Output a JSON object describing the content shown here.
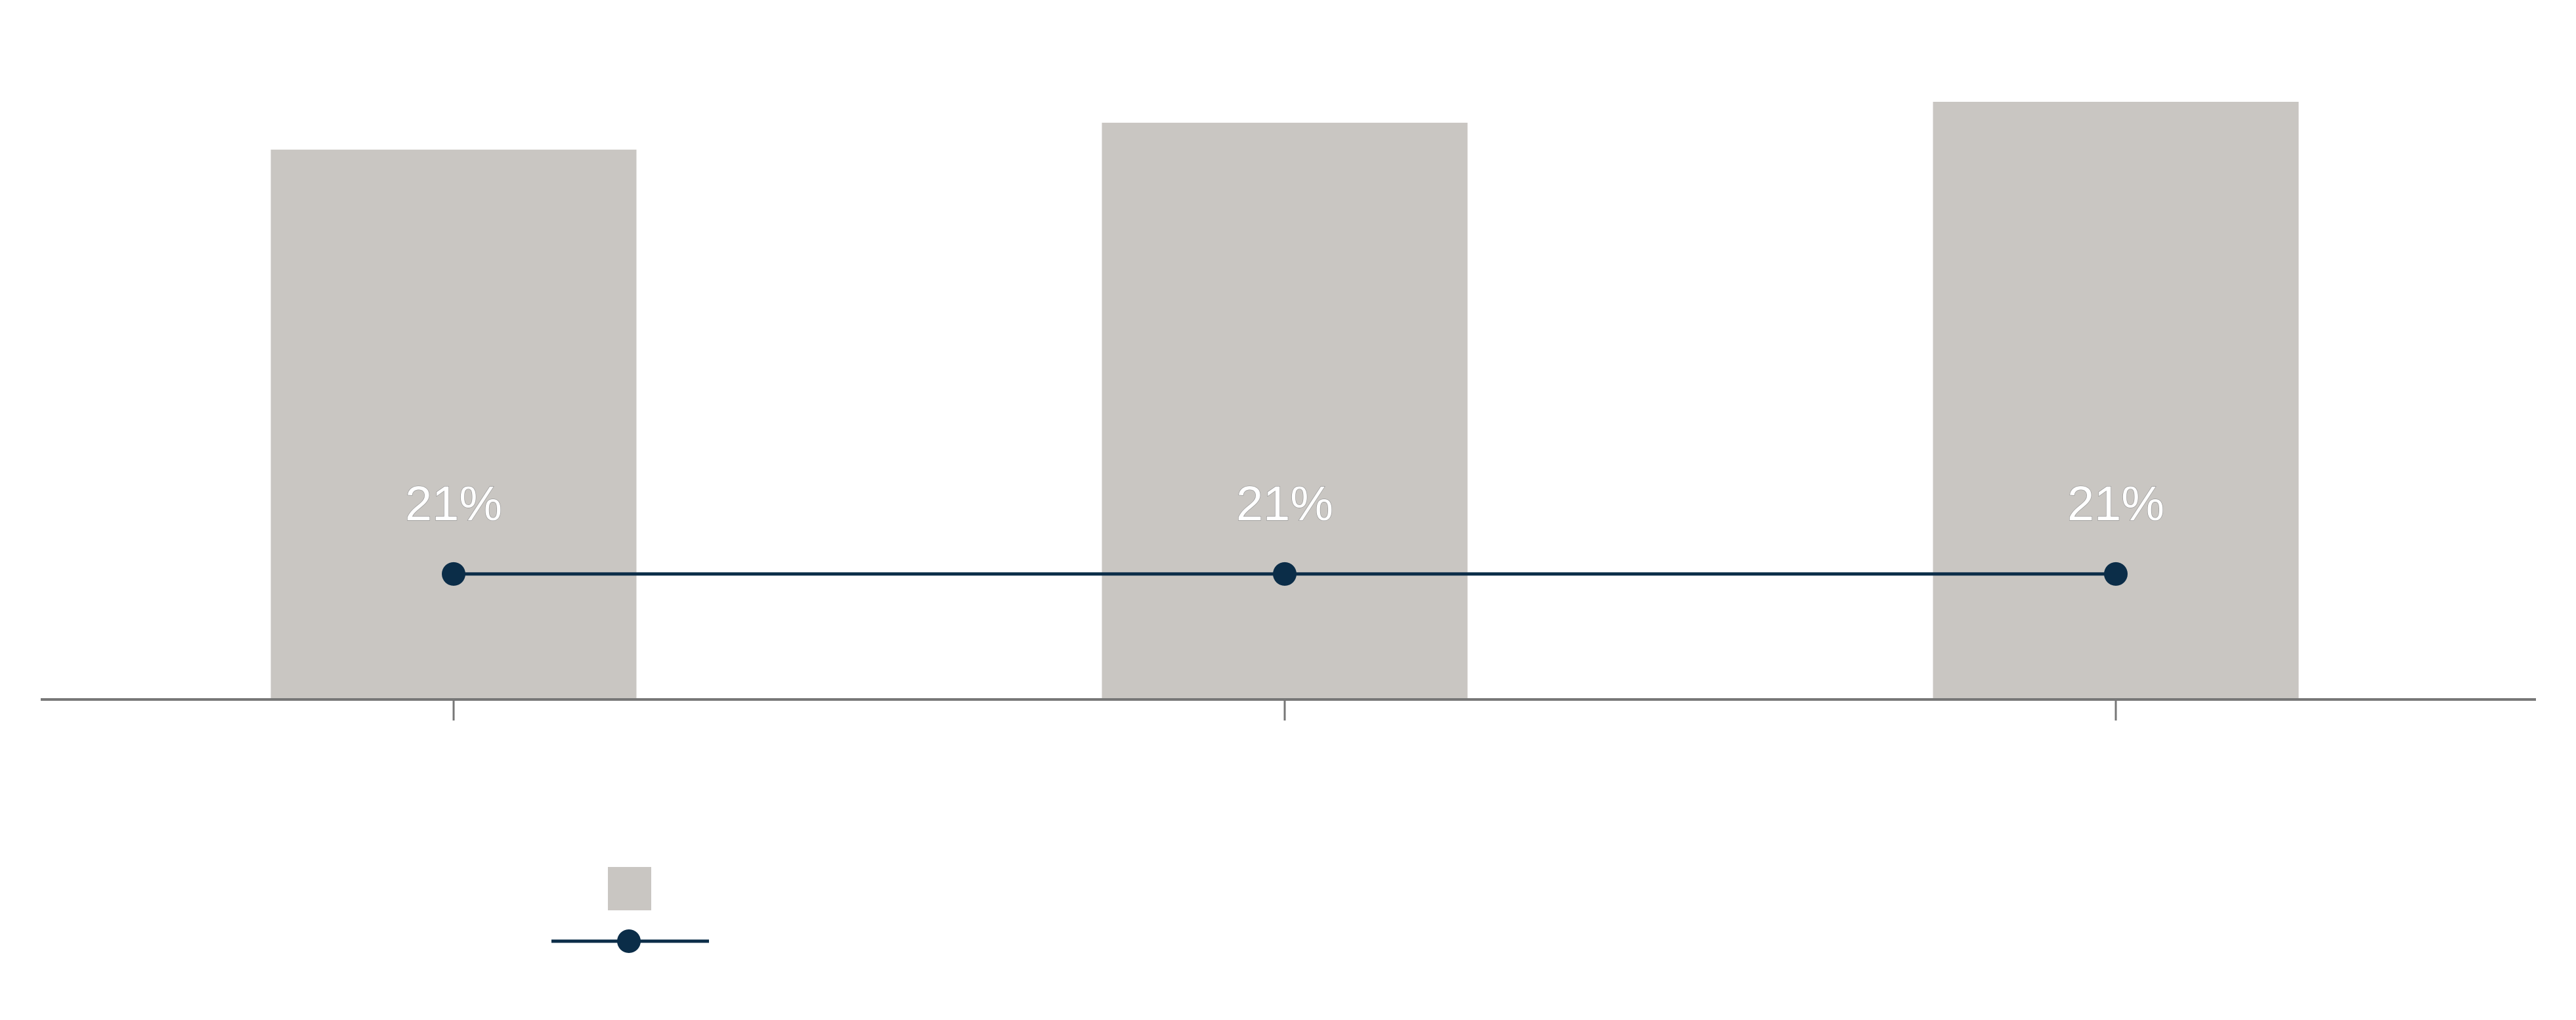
{
  "chart_data": {
    "type": "bar",
    "title": "",
    "xlabel": "",
    "ylabel": "",
    "categories": [
      "",
      "",
      ""
    ],
    "ylim": [
      0,
      100
    ],
    "grid": false,
    "legend_position": "bottom-left",
    "series": [
      {
        "name": "",
        "type": "bar",
        "color": "#c9c6c2",
        "values": [
          92,
          96.5,
          100
        ]
      },
      {
        "name": "",
        "type": "line",
        "color": "#0b2d48",
        "values": [
          21,
          21,
          21
        ],
        "data_labels": [
          "21%",
          "21%",
          "21%"
        ]
      }
    ]
  }
}
